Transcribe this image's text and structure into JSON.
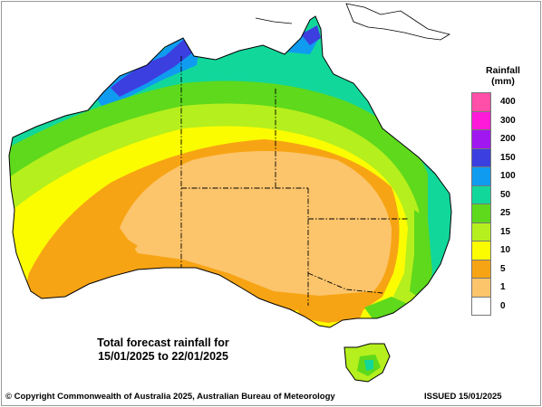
{
  "map": {
    "caption_line1": "Total forecast rainfall for",
    "caption_line2": "15/01/2025 to 22/01/2025"
  },
  "legend": {
    "title": "Rainfall",
    "units": "(mm)",
    "items": [
      {
        "label": "400",
        "color": "#ff4fa8"
      },
      {
        "label": "300",
        "color": "#ff1ad9"
      },
      {
        "label": "200",
        "color": "#a117f0"
      },
      {
        "label": "150",
        "color": "#3b3fe0"
      },
      {
        "label": "100",
        "color": "#0f9bf0"
      },
      {
        "label": "50",
        "color": "#12d79b"
      },
      {
        "label": "25",
        "color": "#5ed91c"
      },
      {
        "label": "15",
        "color": "#b5ef1d"
      },
      {
        "label": "10",
        "color": "#fcfc00"
      },
      {
        "label": "5",
        "color": "#f7a414"
      },
      {
        "label": "1",
        "color": "#fcc46b"
      },
      {
        "label": "0",
        "color": "#ffffff"
      }
    ]
  },
  "footer": {
    "copyright": "© Copyright Commonwealth of Australia 2025, Australian Bureau of Meteorology",
    "issued": "ISSUED 15/01/2025"
  }
}
